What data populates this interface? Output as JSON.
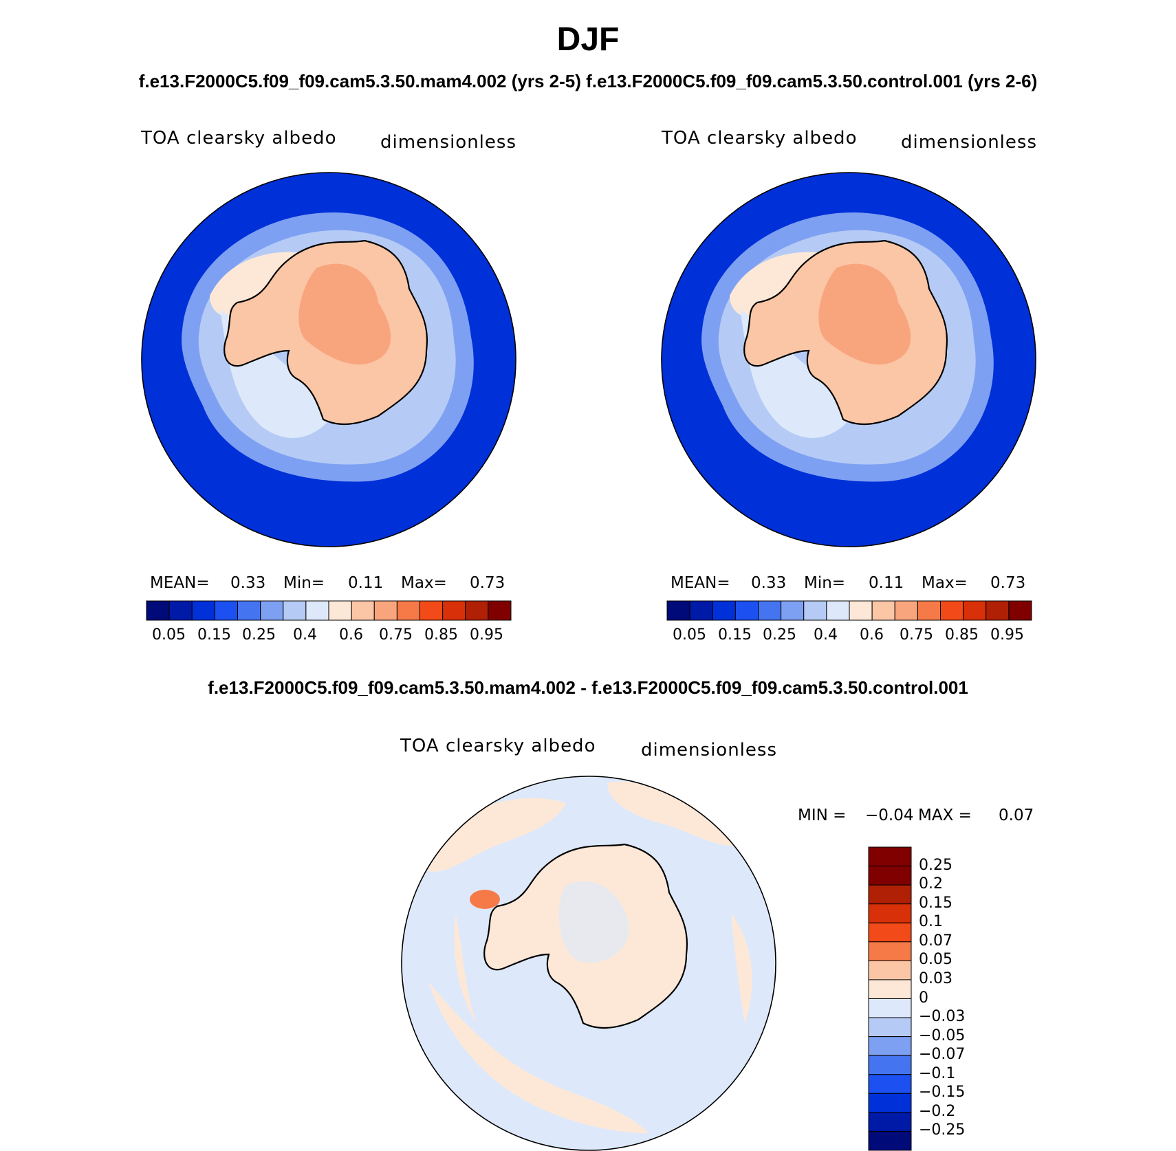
{
  "title": "DJF",
  "subtitle": "f.e13.F2000C5.f09_f09.cam5.3.50.mam4.002 (yrs 2-5) f.e13.F2000C5.f09_f09.cam5.3.50.control.001 (yrs 2-6)",
  "panels": [
    {
      "variable": "TOA clearsky albedo",
      "units": "dimensionless",
      "mean_label": "MEAN=",
      "mean": "0.33",
      "min_label": "Min=",
      "min": "0.11",
      "max_label": "Max=",
      "max": "0.73",
      "colorbar_ticks": [
        "0.05",
        "0.15",
        "0.25",
        "0.4",
        "0.6",
        "0.75",
        "0.85",
        "0.95"
      ]
    },
    {
      "variable": "TOA clearsky albedo",
      "units": "dimensionless",
      "mean_label": "MEAN=",
      "mean": "0.33",
      "min_label": "Min=",
      "min": "0.11",
      "max_label": "Max=",
      "max": "0.73",
      "colorbar_ticks": [
        "0.05",
        "0.15",
        "0.25",
        "0.4",
        "0.6",
        "0.75",
        "0.85",
        "0.95"
      ]
    }
  ],
  "difference": {
    "title": "f.e13.F2000C5.f09_f09.cam5.3.50.mam4.002 - f.e13.F2000C5.f09_f09.cam5.3.50.control.001",
    "variable": "TOA clearsky albedo",
    "units": "dimensionless",
    "min_label": "MIN =",
    "min": "−0.04",
    "max_label": "MAX =",
    "max": "0.07",
    "colorbar_ticks": [
      "0.25",
      "0.2",
      "0.15",
      "0.1",
      "0.07",
      "0.05",
      "0.03",
      "0",
      "−0.03",
      "−0.05",
      "−0.07",
      "−0.1",
      "−0.15",
      "−0.2",
      "−0.25"
    ]
  },
  "colors": {
    "main_scale": [
      "#000a78",
      "#001aa8",
      "#0030d8",
      "#1c50f0",
      "#4474f0",
      "#7ea0f2",
      "#b5cbf5",
      "#dde9fa",
      "#fde8d8",
      "#fbc6a6",
      "#f8a57e",
      "#f67a48",
      "#f24a18",
      "#d83008",
      "#b02004",
      "#800000"
    ],
    "diff_scale": [
      "#800000",
      "#b02004",
      "#d83008",
      "#f24a18",
      "#f67a48",
      "#fbc6a6",
      "#fde8d8",
      "#dde9fa",
      "#b5cbf5",
      "#7ea0f2",
      "#4474f0",
      "#1c50f0",
      "#0030d8",
      "#001aa8",
      "#000a78"
    ],
    "ocean": "#0030d8",
    "continent": "#fbc6a6",
    "interior": "#f8a57e",
    "diff_ocean": "#dde9fa",
    "diff_pos": "#fde8d8"
  }
}
